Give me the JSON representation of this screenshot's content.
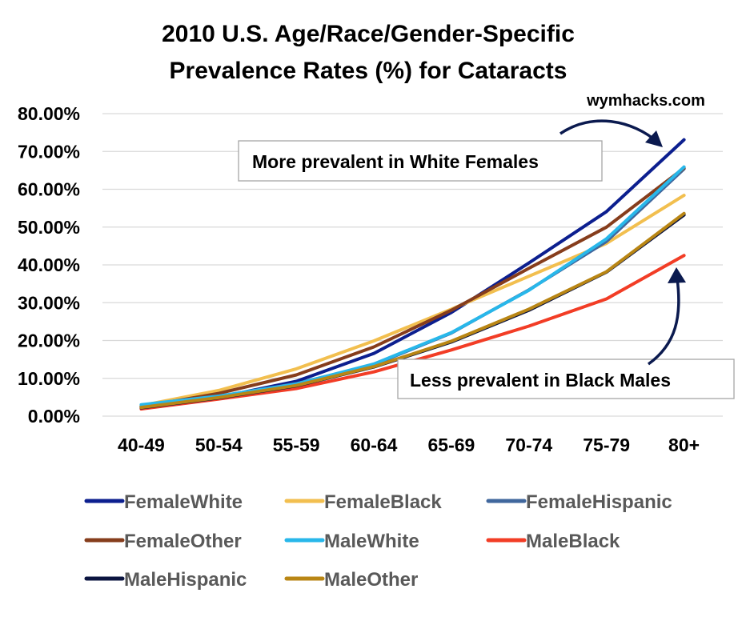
{
  "chart_data": {
    "type": "line",
    "title": [
      "2010 U.S. Age/Race/Gender-Specific",
      "Prevalence Rates (%) for Cataracts"
    ],
    "source": "wymhacks.com",
    "xlabel": "",
    "ylabel": "",
    "ylim": [
      0,
      80
    ],
    "yticks": [
      "0.00%",
      "10.00%",
      "20.00%",
      "30.00%",
      "40.00%",
      "50.00%",
      "60.00%",
      "70.00%",
      "80.00%"
    ],
    "grid": true,
    "legend_position": "bottom",
    "categories": [
      "40-49",
      "50-54",
      "55-59",
      "60-64",
      "65-69",
      "70-74",
      "75-79",
      "80+"
    ],
    "series": [
      {
        "name": "FemaleWhite",
        "color": "#0c1f8f",
        "values": [
          2.5,
          5.0,
          9.2,
          16.6,
          27.4,
          40.5,
          54.1,
          73.1
        ]
      },
      {
        "name": "FemaleBlack",
        "color": "#f2bf4f",
        "values": [
          2.8,
          6.8,
          12.5,
          19.9,
          28.3,
          37.0,
          45.7,
          58.4
        ]
      },
      {
        "name": "FemaleHispanic",
        "color": "#40679d",
        "values": [
          2.4,
          5.2,
          8.6,
          13.6,
          22.0,
          33.4,
          46.2,
          65.4
        ]
      },
      {
        "name": "FemaleOther",
        "color": "#863d1c",
        "values": [
          2.5,
          6.0,
          10.9,
          18.3,
          28.0,
          39.1,
          50.0,
          65.6
        ]
      },
      {
        "name": "MaleWhite",
        "color": "#28b7ea",
        "values": [
          3.0,
          5.3,
          8.5,
          13.8,
          22.1,
          33.3,
          46.9,
          65.9
        ]
      },
      {
        "name": "MaleBlack",
        "color": "#f23d26",
        "values": [
          1.9,
          4.5,
          7.3,
          11.7,
          17.5,
          23.8,
          31.0,
          42.5
        ]
      },
      {
        "name": "MaleHispanic",
        "color": "#0b1440",
        "values": [
          2.2,
          4.8,
          8.0,
          13.0,
          19.6,
          28.0,
          38.1,
          53.2
        ]
      },
      {
        "name": "MaleOther",
        "color": "#b98614",
        "values": [
          2.3,
          4.9,
          8.1,
          13.1,
          19.8,
          28.3,
          38.2,
          53.6
        ]
      }
    ],
    "annotations": [
      {
        "text": "More prevalent in White Females"
      },
      {
        "text": "Less prevalent in Black Males"
      }
    ]
  }
}
